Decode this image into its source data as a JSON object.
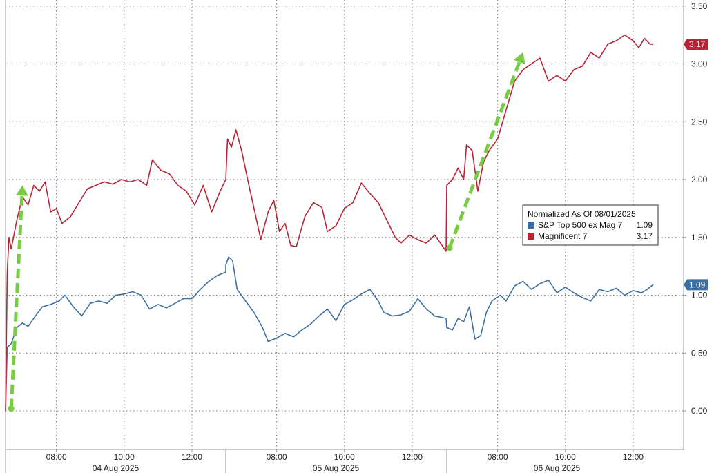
{
  "chart_data": {
    "type": "line",
    "title": "",
    "xlabel": "",
    "ylabel": "",
    "ylim": [
      -0.15,
      3.55
    ],
    "y_ticks": [
      "0.00",
      "0.50",
      "1.00",
      "1.50",
      "2.00",
      "2.50",
      "3.00",
      "3.50"
    ],
    "y_tick_values": [
      0,
      0.5,
      1,
      1.5,
      2,
      2.5,
      3,
      3.5
    ],
    "time_ticks": [
      "08:00",
      "10:00",
      "12:00",
      "08:00",
      "10:00",
      "12:00",
      "08:00",
      "10:00",
      "12:00"
    ],
    "sessions": [
      "04 Aug 2025",
      "05 Aug 2025",
      "06 Aug 2025"
    ],
    "session_hours": [
      "06:30",
      "13:00"
    ],
    "grid": true,
    "legend": {
      "title": "Normalized As Of 08/01/2025",
      "position": "right",
      "entries": [
        {
          "label": "S&P Top 500 ex Mag 7",
          "value": "1.09"
        },
        {
          "label": "Magnificent 7",
          "value": "3.17"
        }
      ]
    },
    "annotations": [
      {
        "type": "arrow",
        "color": "#77cc44",
        "from": [
          "04 Aug 2025 06:40",
          0.02
        ],
        "to": [
          "04 Aug 2025 07:00",
          1.95
        ]
      },
      {
        "type": "arrow",
        "color": "#77cc44",
        "from": [
          "06 Aug 2025 06:35",
          1.41
        ],
        "to": [
          "06 Aug 2025 08:45",
          3.1
        ]
      }
    ],
    "series": [
      {
        "name": "S&P Top 500 ex Mag 7",
        "color": "#3d6fa2",
        "last_value": "1.09",
        "points": [
          [
            "04 Aug 2025 06:30",
            0.0
          ],
          [
            "04 Aug 2025 06:33",
            0.55
          ],
          [
            "04 Aug 2025 06:40",
            0.58
          ],
          [
            "04 Aug 2025 06:50",
            0.72
          ],
          [
            "04 Aug 2025 07:00",
            0.76
          ],
          [
            "04 Aug 2025 07:10",
            0.73
          ],
          [
            "04 Aug 2025 07:20",
            0.8
          ],
          [
            "04 Aug 2025 07:35",
            0.9
          ],
          [
            "04 Aug 2025 07:50",
            0.92
          ],
          [
            "04 Aug 2025 08:05",
            0.95
          ],
          [
            "04 Aug 2025 08:15",
            1.0
          ],
          [
            "04 Aug 2025 08:30",
            0.9
          ],
          [
            "04 Aug 2025 08:45",
            0.82
          ],
          [
            "04 Aug 2025 09:00",
            0.93
          ],
          [
            "04 Aug 2025 09:15",
            0.95
          ],
          [
            "04 Aug 2025 09:30",
            0.93
          ],
          [
            "04 Aug 2025 09:45",
            1.0
          ],
          [
            "04 Aug 2025 10:00",
            1.01
          ],
          [
            "04 Aug 2025 10:15",
            1.03
          ],
          [
            "04 Aug 2025 10:30",
            1.0
          ],
          [
            "04 Aug 2025 10:45",
            0.88
          ],
          [
            "04 Aug 2025 11:00",
            0.92
          ],
          [
            "04 Aug 2025 11:15",
            0.89
          ],
          [
            "04 Aug 2025 11:30",
            0.93
          ],
          [
            "04 Aug 2025 11:45",
            0.97
          ],
          [
            "04 Aug 2025 12:00",
            0.97
          ],
          [
            "04 Aug 2025 12:15",
            1.05
          ],
          [
            "04 Aug 2025 12:30",
            1.12
          ],
          [
            "04 Aug 2025 12:45",
            1.17
          ],
          [
            "04 Aug 2025 13:00",
            1.2
          ],
          [
            "05 Aug 2025 06:30",
            1.26
          ],
          [
            "05 Aug 2025 06:35",
            1.33
          ],
          [
            "05 Aug 2025 06:42",
            1.3
          ],
          [
            "05 Aug 2025 06:50",
            1.05
          ],
          [
            "05 Aug 2025 07:05",
            0.95
          ],
          [
            "05 Aug 2025 07:20",
            0.85
          ],
          [
            "05 Aug 2025 07:35",
            0.72
          ],
          [
            "05 Aug 2025 07:45",
            0.6
          ],
          [
            "05 Aug 2025 08:00",
            0.63
          ],
          [
            "05 Aug 2025 08:15",
            0.67
          ],
          [
            "05 Aug 2025 08:30",
            0.64
          ],
          [
            "05 Aug 2025 08:45",
            0.7
          ],
          [
            "05 Aug 2025 09:00",
            0.75
          ],
          [
            "05 Aug 2025 09:15",
            0.82
          ],
          [
            "05 Aug 2025 09:30",
            0.88
          ],
          [
            "05 Aug 2025 09:45",
            0.78
          ],
          [
            "05 Aug 2025 10:00",
            0.92
          ],
          [
            "05 Aug 2025 10:15",
            0.96
          ],
          [
            "05 Aug 2025 10:30",
            1.01
          ],
          [
            "05 Aug 2025 10:45",
            1.05
          ],
          [
            "05 Aug 2025 11:00",
            0.95
          ],
          [
            "05 Aug 2025 11:10",
            0.85
          ],
          [
            "05 Aug 2025 11:25",
            0.82
          ],
          [
            "05 Aug 2025 11:40",
            0.83
          ],
          [
            "05 Aug 2025 11:55",
            0.86
          ],
          [
            "05 Aug 2025 12:10",
            0.97
          ],
          [
            "05 Aug 2025 12:25",
            0.88
          ],
          [
            "05 Aug 2025 12:40",
            0.82
          ],
          [
            "05 Aug 2025 13:00",
            0.8
          ],
          [
            "06 Aug 2025 06:30",
            0.72
          ],
          [
            "06 Aug 2025 06:40",
            0.7
          ],
          [
            "06 Aug 2025 06:50",
            0.8
          ],
          [
            "06 Aug 2025 07:00",
            0.77
          ],
          [
            "06 Aug 2025 07:10",
            0.9
          ],
          [
            "06 Aug 2025 07:20",
            0.62
          ],
          [
            "06 Aug 2025 07:30",
            0.65
          ],
          [
            "06 Aug 2025 07:40",
            0.85
          ],
          [
            "06 Aug 2025 07:50",
            0.95
          ],
          [
            "06 Aug 2025 08:05",
            1.0
          ],
          [
            "06 Aug 2025 08:15",
            0.95
          ],
          [
            "06 Aug 2025 08:30",
            1.08
          ],
          [
            "06 Aug 2025 08:45",
            1.12
          ],
          [
            "06 Aug 2025 09:00",
            1.05
          ],
          [
            "06 Aug 2025 09:15",
            1.1
          ],
          [
            "06 Aug 2025 09:30",
            1.13
          ],
          [
            "06 Aug 2025 09:45",
            1.02
          ],
          [
            "06 Aug 2025 10:00",
            1.07
          ],
          [
            "06 Aug 2025 10:15",
            1.02
          ],
          [
            "06 Aug 2025 10:30",
            0.98
          ],
          [
            "06 Aug 2025 10:45",
            0.95
          ],
          [
            "06 Aug 2025 11:00",
            1.05
          ],
          [
            "06 Aug 2025 11:15",
            1.03
          ],
          [
            "06 Aug 2025 11:30",
            1.06
          ],
          [
            "06 Aug 2025 11:45",
            1.0
          ],
          [
            "06 Aug 2025 12:00",
            1.04
          ],
          [
            "06 Aug 2025 12:15",
            1.02
          ],
          [
            "06 Aug 2025 12:25",
            1.05
          ],
          [
            "06 Aug 2025 12:35",
            1.09
          ]
        ]
      },
      {
        "name": "Magnificent 7",
        "color": "#b82434",
        "last_value": "3.17",
        "points": [
          [
            "04 Aug 2025 06:30",
            0.0
          ],
          [
            "04 Aug 2025 06:33",
            1.2
          ],
          [
            "04 Aug 2025 06:36",
            1.5
          ],
          [
            "04 Aug 2025 06:40",
            1.4
          ],
          [
            "04 Aug 2025 06:50",
            1.65
          ],
          [
            "04 Aug 2025 07:00",
            1.85
          ],
          [
            "04 Aug 2025 07:10",
            1.78
          ],
          [
            "04 Aug 2025 07:20",
            1.95
          ],
          [
            "04 Aug 2025 07:30",
            1.9
          ],
          [
            "04 Aug 2025 07:40",
            1.98
          ],
          [
            "04 Aug 2025 07:50",
            1.72
          ],
          [
            "04 Aug 2025 08:00",
            1.75
          ],
          [
            "04 Aug 2025 08:10",
            1.62
          ],
          [
            "04 Aug 2025 08:25",
            1.68
          ],
          [
            "04 Aug 2025 08:40",
            1.8
          ],
          [
            "04 Aug 2025 08:55",
            1.92
          ],
          [
            "04 Aug 2025 09:10",
            1.95
          ],
          [
            "04 Aug 2025 09:25",
            1.98
          ],
          [
            "04 Aug 2025 09:40",
            1.96
          ],
          [
            "04 Aug 2025 09:55",
            2.0
          ],
          [
            "04 Aug 2025 10:10",
            1.98
          ],
          [
            "04 Aug 2025 10:25",
            2.0
          ],
          [
            "04 Aug 2025 10:40",
            1.95
          ],
          [
            "04 Aug 2025 10:50",
            2.17
          ],
          [
            "04 Aug 2025 11:05",
            2.08
          ],
          [
            "04 Aug 2025 11:20",
            2.05
          ],
          [
            "04 Aug 2025 11:35",
            1.95
          ],
          [
            "04 Aug 2025 11:50",
            1.9
          ],
          [
            "04 Aug 2025 12:05",
            1.78
          ],
          [
            "04 Aug 2025 12:20",
            1.95
          ],
          [
            "04 Aug 2025 12:35",
            1.72
          ],
          [
            "04 Aug 2025 12:50",
            1.9
          ],
          [
            "04 Aug 2025 13:00",
            2.0
          ],
          [
            "05 Aug 2025 06:30",
            2.0
          ],
          [
            "05 Aug 2025 06:33",
            2.35
          ],
          [
            "05 Aug 2025 06:40",
            2.28
          ],
          [
            "05 Aug 2025 06:48",
            2.43
          ],
          [
            "05 Aug 2025 06:58",
            2.25
          ],
          [
            "05 Aug 2025 07:10",
            1.97
          ],
          [
            "05 Aug 2025 07:20",
            1.75
          ],
          [
            "05 Aug 2025 07:32",
            1.48
          ],
          [
            "05 Aug 2025 07:45",
            1.72
          ],
          [
            "05 Aug 2025 07:55",
            1.82
          ],
          [
            "05 Aug 2025 08:05",
            1.55
          ],
          [
            "05 Aug 2025 08:15",
            1.62
          ],
          [
            "05 Aug 2025 08:25",
            1.43
          ],
          [
            "05 Aug 2025 08:35",
            1.42
          ],
          [
            "05 Aug 2025 08:50",
            1.68
          ],
          [
            "05 Aug 2025 09:05",
            1.8
          ],
          [
            "05 Aug 2025 09:20",
            1.76
          ],
          [
            "05 Aug 2025 09:30",
            1.55
          ],
          [
            "05 Aug 2025 09:45",
            1.6
          ],
          [
            "05 Aug 2025 10:00",
            1.75
          ],
          [
            "05 Aug 2025 10:15",
            1.8
          ],
          [
            "05 Aug 2025 10:30",
            1.97
          ],
          [
            "05 Aug 2025 10:45",
            1.88
          ],
          [
            "05 Aug 2025 11:00",
            1.8
          ],
          [
            "05 Aug 2025 11:15",
            1.65
          ],
          [
            "05 Aug 2025 11:30",
            1.5
          ],
          [
            "05 Aug 2025 11:40",
            1.45
          ],
          [
            "05 Aug 2025 11:55",
            1.52
          ],
          [
            "05 Aug 2025 12:10",
            1.48
          ],
          [
            "05 Aug 2025 12:25",
            1.45
          ],
          [
            "05 Aug 2025 12:40",
            1.52
          ],
          [
            "05 Aug 2025 12:50",
            1.45
          ],
          [
            "05 Aug 2025 13:00",
            1.38
          ],
          [
            "06 Aug 2025 06:30",
            1.95
          ],
          [
            "06 Aug 2025 06:40",
            2.0
          ],
          [
            "06 Aug 2025 06:50",
            2.1
          ],
          [
            "06 Aug 2025 07:00",
            2.0
          ],
          [
            "06 Aug 2025 07:05",
            2.3
          ],
          [
            "06 Aug 2025 07:15",
            2.25
          ],
          [
            "06 Aug 2025 07:25",
            1.9
          ],
          [
            "06 Aug 2025 07:35",
            2.15
          ],
          [
            "06 Aug 2025 07:45",
            2.25
          ],
          [
            "06 Aug 2025 08:00",
            2.35
          ],
          [
            "06 Aug 2025 08:15",
            2.6
          ],
          [
            "06 Aug 2025 08:30",
            2.85
          ],
          [
            "06 Aug 2025 08:45",
            2.95
          ],
          [
            "06 Aug 2025 09:00",
            3.0
          ],
          [
            "06 Aug 2025 09:15",
            3.05
          ],
          [
            "06 Aug 2025 09:30",
            2.85
          ],
          [
            "06 Aug 2025 09:45",
            2.9
          ],
          [
            "06 Aug 2025 10:00",
            2.85
          ],
          [
            "06 Aug 2025 10:15",
            2.95
          ],
          [
            "06 Aug 2025 10:30",
            2.98
          ],
          [
            "06 Aug 2025 10:45",
            3.1
          ],
          [
            "06 Aug 2025 11:00",
            3.05
          ],
          [
            "06 Aug 2025 11:15",
            3.17
          ],
          [
            "06 Aug 2025 11:30",
            3.2
          ],
          [
            "06 Aug 2025 11:45",
            3.25
          ],
          [
            "06 Aug 2025 12:00",
            3.2
          ],
          [
            "06 Aug 2025 12:10",
            3.14
          ],
          [
            "06 Aug 2025 12:20",
            3.22
          ],
          [
            "06 Aug 2025 12:30",
            3.17
          ],
          [
            "06 Aug 2025 12:35",
            3.17
          ]
        ]
      }
    ]
  }
}
